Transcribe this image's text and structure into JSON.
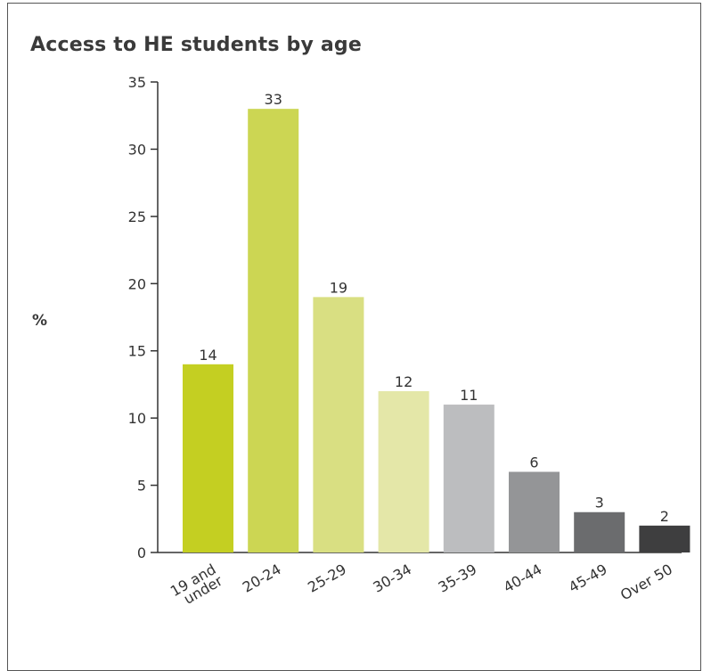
{
  "chart_data": {
    "type": "bar",
    "title": "Access to HE students by age",
    "xlabel": "",
    "ylabel": "%",
    "ylim": [
      0,
      35
    ],
    "yticks": [
      0,
      5,
      10,
      15,
      20,
      25,
      30,
      35
    ],
    "categories": [
      "19 and under",
      "20-24",
      "25-29",
      "30-34",
      "35-39",
      "40-44",
      "45-49",
      "Over 50"
    ],
    "category_lines": [
      [
        "19 and",
        "under"
      ],
      [
        "20-24"
      ],
      [
        "25-29"
      ],
      [
        "30-34"
      ],
      [
        "35-39"
      ],
      [
        "40-44"
      ],
      [
        "45-49"
      ],
      [
        "Over 50"
      ]
    ],
    "values": [
      14,
      33,
      19,
      12,
      11,
      6,
      3,
      2
    ],
    "bar_colors": [
      "#c4cf22",
      "#ccd653",
      "#d9df82",
      "#e4e7a8",
      "#bcbdbf",
      "#949597",
      "#6b6c6e",
      "#3e3e3f"
    ],
    "grid": false,
    "legend": "none"
  }
}
